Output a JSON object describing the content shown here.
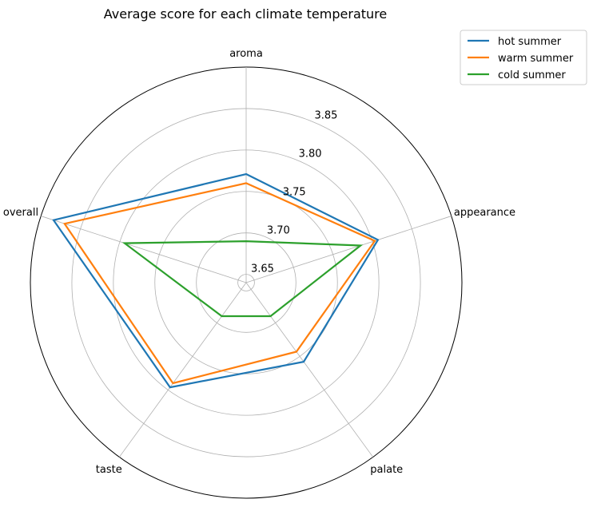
{
  "chart_data": {
    "type": "radar",
    "title": "Average score for each climate temperature",
    "categories": [
      "aroma",
      "appearance",
      "palate",
      "taste",
      "overall"
    ],
    "r_ticks": [
      3.65,
      3.7,
      3.75,
      3.8,
      3.85
    ],
    "r_tick_labels": [
      "3.65",
      "3.70",
      "3.75",
      "3.80",
      "3.85"
    ],
    "rlim": [
      3.64,
      3.9
    ],
    "grid": true,
    "legend_position": "top-right",
    "series": [
      {
        "name": "hot summer",
        "color": "#1f77b4",
        "values": [
          3.771,
          3.807,
          3.758,
          3.796,
          3.884
        ]
      },
      {
        "name": "warm summer",
        "color": "#ff7f0e",
        "values": [
          3.76,
          3.803,
          3.743,
          3.79,
          3.87
        ]
      },
      {
        "name": "cold summer",
        "color": "#2ca02c",
        "values": [
          3.69,
          3.785,
          3.69,
          3.69,
          3.794
        ]
      }
    ]
  }
}
